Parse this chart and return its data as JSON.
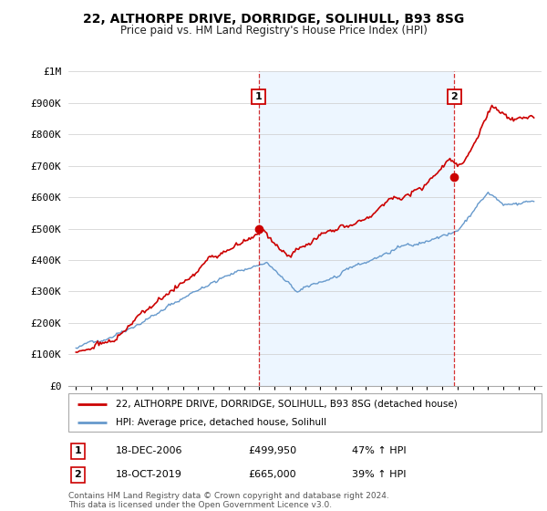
{
  "title": "22, ALTHORPE DRIVE, DORRIDGE, SOLIHULL, B93 8SG",
  "subtitle": "Price paid vs. HM Land Registry's House Price Index (HPI)",
  "legend_house": "22, ALTHORPE DRIVE, DORRIDGE, SOLIHULL, B93 8SG (detached house)",
  "legend_hpi": "HPI: Average price, detached house, Solihull",
  "annotation1_date": "18-DEC-2006",
  "annotation1_price": "£499,950",
  "annotation1_change": "47% ↑ HPI",
  "annotation2_date": "18-OCT-2019",
  "annotation2_price": "£665,000",
  "annotation2_change": "39% ↑ HPI",
  "footnote1": "Contains HM Land Registry data © Crown copyright and database right 2024.",
  "footnote2": "This data is licensed under the Open Government Licence v3.0.",
  "house_color": "#cc0000",
  "hpi_color": "#6699cc",
  "hpi_fill_color": "#ddeeff",
  "sale1_x": 2006.96,
  "sale1_y": 499950,
  "sale2_x": 2019.79,
  "sale2_y": 665000,
  "ylim": [
    0,
    1000000
  ],
  "xlim": [
    1994.5,
    2025.5
  ],
  "y_ticks": [
    0,
    100000,
    200000,
    300000,
    400000,
    500000,
    600000,
    700000,
    800000,
    900000,
    1000000
  ],
  "y_labels": [
    "£0",
    "£100K",
    "£200K",
    "£300K",
    "£400K",
    "£500K",
    "£600K",
    "£700K",
    "£800K",
    "£900K",
    "£1M"
  ],
  "x_ticks": [
    1995,
    1996,
    1997,
    1998,
    1999,
    2000,
    2001,
    2002,
    2003,
    2004,
    2005,
    2006,
    2007,
    2008,
    2009,
    2010,
    2011,
    2012,
    2013,
    2014,
    2015,
    2016,
    2017,
    2018,
    2019,
    2020,
    2021,
    2022,
    2023,
    2024,
    2025
  ]
}
